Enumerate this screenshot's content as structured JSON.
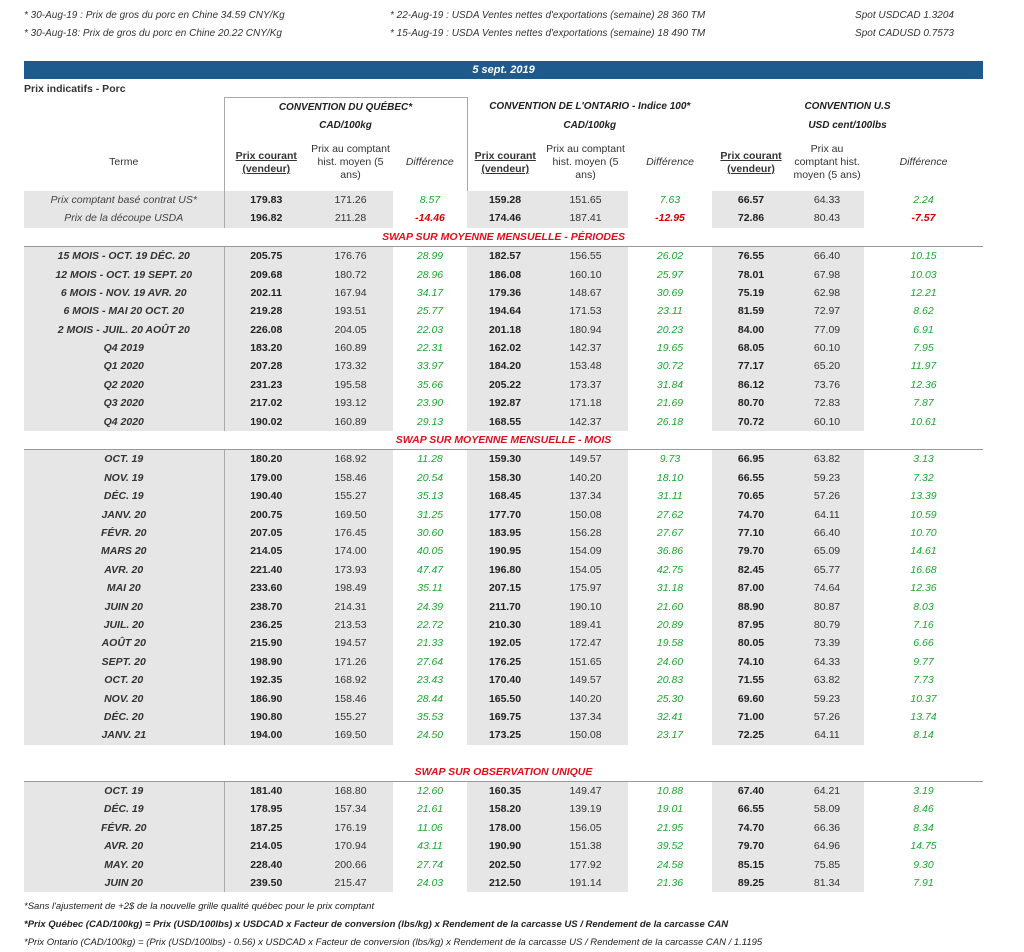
{
  "notes": {
    "left1": "* 30-Aug-19 : Prix de gros du porc en Chine 34.59 CNY/Kg",
    "left2": "* 30-Aug-18: Prix de gros du porc en Chine 20.22  CNY/Kg",
    "mid1": "* 22-Aug-19 : USDA Ventes nettes d'exportations (semaine)  28 360 TM",
    "mid2": "* 15-Aug-19 : USDA Ventes nettes d'exportations (semaine) 18 490 TM",
    "right1": "Spot USDCAD 1.3204",
    "right2": "Spot CADUSD 0.7573"
  },
  "date": "5 sept. 2019",
  "section_title": "Prix indicatifs - Porc",
  "groups": {
    "qc": "CONVENTION DU QUÉBEC*",
    "qc_unit": "CAD/100kg",
    "on": "CONVENTION DE L'ONTARIO - Indice 100*",
    "on_unit": "CAD/100kg",
    "us": "CONVENTION U.S",
    "us_unit": "USD cent/100lbs"
  },
  "cols": {
    "terme": "Terme",
    "prix": "Prix courant (vendeur)",
    "hist": "Prix au comptant hist. moyen (5 ans)",
    "diff": "Différence"
  },
  "spot_rows": [
    {
      "label": "Prix comptant basé contrat US*",
      "v": [
        "179.83",
        "171.26",
        "8.57",
        "159.28",
        "151.65",
        "7.63",
        "66.57",
        "64.33",
        "2.24"
      ],
      "neg": [
        false,
        false,
        false
      ]
    },
    {
      "label": "Prix de la découpe USDA",
      "v": [
        "196.82",
        "211.28",
        "-14.46",
        "174.46",
        "187.41",
        "-12.95",
        "72.86",
        "80.43",
        "-7.57"
      ],
      "neg": [
        true,
        true,
        true
      ]
    }
  ],
  "banner1": "SWAP SUR MOYENNE MENSUELLE - PÉRIODES",
  "periods": [
    {
      "label": "15 MOIS -  OCT. 19 DÉC. 20",
      "v": [
        "205.75",
        "176.76",
        "28.99",
        "182.57",
        "156.55",
        "26.02",
        "76.55",
        "66.40",
        "10.15"
      ]
    },
    {
      "label": "12 MOIS -  OCT. 19 SEPT. 20",
      "v": [
        "209.68",
        "180.72",
        "28.96",
        "186.08",
        "160.10",
        "25.97",
        "78.01",
        "67.98",
        "10.03"
      ]
    },
    {
      "label": "6 MOIS -  NOV. 19 AVR. 20",
      "v": [
        "202.11",
        "167.94",
        "34.17",
        "179.36",
        "148.67",
        "30.69",
        "75.19",
        "62.98",
        "12.21"
      ]
    },
    {
      "label": "6 MOIS -  MAI 20 OCT. 20",
      "v": [
        "219.28",
        "193.51",
        "25.77",
        "194.64",
        "171.53",
        "23.11",
        "81.59",
        "72.97",
        "8.62"
      ]
    },
    {
      "label": "2 MOIS -  JUIL. 20  AOÛT 20",
      "v": [
        "226.08",
        "204.05",
        "22.03",
        "201.18",
        "180.94",
        "20.23",
        "84.00",
        "77.09",
        "6.91"
      ]
    },
    {
      "label": "Q4 2019",
      "v": [
        "183.20",
        "160.89",
        "22.31",
        "162.02",
        "142.37",
        "19.65",
        "68.05",
        "60.10",
        "7.95"
      ]
    },
    {
      "label": "Q1 2020",
      "v": [
        "207.28",
        "173.32",
        "33.97",
        "184.20",
        "153.48",
        "30.72",
        "77.17",
        "65.20",
        "11.97"
      ]
    },
    {
      "label": "Q2 2020",
      "v": [
        "231.23",
        "195.58",
        "35.66",
        "205.22",
        "173.37",
        "31.84",
        "86.12",
        "73.76",
        "12.36"
      ]
    },
    {
      "label": "Q3 2020",
      "v": [
        "217.02",
        "193.12",
        "23.90",
        "192.87",
        "171.18",
        "21.69",
        "80.70",
        "72.83",
        "7.87"
      ]
    },
    {
      "label": "Q4 2020",
      "v": [
        "190.02",
        "160.89",
        "29.13",
        "168.55",
        "142.37",
        "26.18",
        "70.72",
        "60.10",
        "10.61"
      ]
    }
  ],
  "banner2": "SWAP SUR MOYENNE MENSUELLE - MOIS",
  "months": [
    {
      "label": "OCT. 19",
      "v": [
        "180.20",
        "168.92",
        "11.28",
        "159.30",
        "149.57",
        "9.73",
        "66.95",
        "63.82",
        "3.13"
      ]
    },
    {
      "label": "NOV. 19",
      "v": [
        "179.00",
        "158.46",
        "20.54",
        "158.30",
        "140.20",
        "18.10",
        "66.55",
        "59.23",
        "7.32"
      ]
    },
    {
      "label": "DÉC. 19",
      "v": [
        "190.40",
        "155.27",
        "35.13",
        "168.45",
        "137.34",
        "31.11",
        "70.65",
        "57.26",
        "13.39"
      ]
    },
    {
      "label": "JANV. 20",
      "v": [
        "200.75",
        "169.50",
        "31.25",
        "177.70",
        "150.08",
        "27.62",
        "74.70",
        "64.11",
        "10.59"
      ]
    },
    {
      "label": "FÉVR. 20",
      "v": [
        "207.05",
        "176.45",
        "30.60",
        "183.95",
        "156.28",
        "27.67",
        "77.10",
        "66.40",
        "10.70"
      ]
    },
    {
      "label": "MARS 20",
      "v": [
        "214.05",
        "174.00",
        "40.05",
        "190.95",
        "154.09",
        "36.86",
        "79.70",
        "65.09",
        "14.61"
      ]
    },
    {
      "label": "AVR. 20",
      "v": [
        "221.40",
        "173.93",
        "47.47",
        "196.80",
        "154.05",
        "42.75",
        "82.45",
        "65.77",
        "16.68"
      ]
    },
    {
      "label": "MAI 20",
      "v": [
        "233.60",
        "198.49",
        "35.11",
        "207.15",
        "175.97",
        "31.18",
        "87.00",
        "74.64",
        "12.36"
      ]
    },
    {
      "label": "JUIN 20",
      "v": [
        "238.70",
        "214.31",
        "24.39",
        "211.70",
        "190.10",
        "21.60",
        "88.90",
        "80.87",
        "8.03"
      ]
    },
    {
      "label": "JUIL. 20",
      "v": [
        "236.25",
        "213.53",
        "22.72",
        "210.30",
        "189.41",
        "20.89",
        "87.95",
        "80.79",
        "7.16"
      ]
    },
    {
      "label": "AOÛT 20",
      "v": [
        "215.90",
        "194.57",
        "21.33",
        "192.05",
        "172.47",
        "19.58",
        "80.05",
        "73.39",
        "6.66"
      ]
    },
    {
      "label": "SEPT. 20",
      "v": [
        "198.90",
        "171.26",
        "27.64",
        "176.25",
        "151.65",
        "24.60",
        "74.10",
        "64.33",
        "9.77"
      ]
    },
    {
      "label": "OCT. 20",
      "v": [
        "192.35",
        "168.92",
        "23.43",
        "170.40",
        "149.57",
        "20.83",
        "71.55",
        "63.82",
        "7.73"
      ]
    },
    {
      "label": "NOV. 20",
      "v": [
        "186.90",
        "158.46",
        "28.44",
        "165.50",
        "140.20",
        "25.30",
        "69.60",
        "59.23",
        "10.37"
      ]
    },
    {
      "label": "DÉC. 20",
      "v": [
        "190.80",
        "155.27",
        "35.53",
        "169.75",
        "137.34",
        "32.41",
        "71.00",
        "57.26",
        "13.74"
      ]
    },
    {
      "label": "JANV. 21",
      "v": [
        "194.00",
        "169.50",
        "24.50",
        "173.25",
        "150.08",
        "23.17",
        "72.25",
        "64.11",
        "8.14"
      ]
    }
  ],
  "banner3": "SWAP SUR OBSERVATION UNIQUE",
  "single": [
    {
      "label": "OCT. 19",
      "v": [
        "181.40",
        "168.80",
        "12.60",
        "160.35",
        "149.47",
        "10.88",
        "67.40",
        "64.21",
        "3.19"
      ]
    },
    {
      "label": "DÉC. 19",
      "v": [
        "178.95",
        "157.34",
        "21.61",
        "158.20",
        "139.19",
        "19.01",
        "66.55",
        "58.09",
        "8.46"
      ]
    },
    {
      "label": "FÉVR. 20",
      "v": [
        "187.25",
        "176.19",
        "11.06",
        "178.00",
        "156.05",
        "21.95",
        "74.70",
        "66.36",
        "8.34"
      ]
    },
    {
      "label": "AVR. 20",
      "v": [
        "214.05",
        "170.94",
        "43.11",
        "190.90",
        "151.38",
        "39.52",
        "79.70",
        "64.96",
        "14.75"
      ]
    },
    {
      "label": "MAY. 20",
      "v": [
        "228.40",
        "200.66",
        "27.74",
        "202.50",
        "177.92",
        "24.58",
        "85.15",
        "75.85",
        "9.30"
      ]
    },
    {
      "label": "JUIN 20",
      "v": [
        "239.50",
        "215.47",
        "24.03",
        "212.50",
        "191.14",
        "21.36",
        "89.25",
        "81.34",
        "7.91"
      ]
    }
  ],
  "footnotes": [
    "*Sans l'ajustement de +2$ de la nouvelle grille qualité québec pour le prix comptant",
    "*Prix Québec (CAD/100kg) = Prix (USD/100lbs) x USDCAD x Facteur de conversion (lbs/kg) x Rendement de la carcasse US / Rendement de la carcasse CAN",
    "*Prix Ontario (CAD/100kg) = (Prix (USD/100lbs) - 0.56) x USDCAD x Facteur de conversion (lbs/kg) x Rendement de la carcasse US / Rendement de la carcasse CAN / 1.1195"
  ],
  "colors": {
    "header_bar": "#1f5a8e",
    "banner": "#e0101a",
    "positive": "#1aa830",
    "negative": "#d40000",
    "shade": "#e6e6e6"
  }
}
